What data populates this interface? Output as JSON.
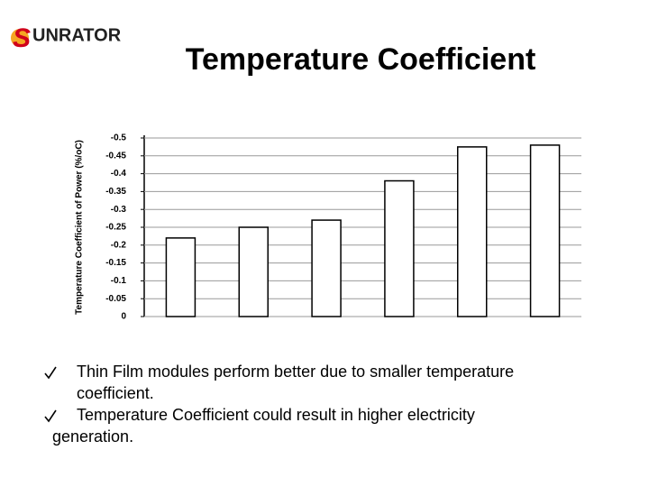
{
  "logo": {
    "initial": "S",
    "name": "UNRATOR"
  },
  "chart_data": {
    "type": "bar",
    "title": "Temperature Coefficient",
    "ylabel": "Temperature Coefficient of Power (%/oC)",
    "categories": [
      null,
      null,
      null,
      null,
      null,
      null
    ],
    "values": [
      -0.22,
      -0.25,
      -0.27,
      -0.38,
      -0.475,
      -0.48
    ],
    "color": "#ffffff",
    "edgecolor": "#000000",
    "ylim": [
      0,
      -0.5
    ],
    "yticks": [
      0,
      -0.05,
      -0.1,
      -0.15,
      -0.2,
      -0.25,
      -0.3,
      -0.35,
      -0.4,
      -0.45,
      -0.5
    ],
    "grid": true
  },
  "bullets": [
    "Thin Film modules perform better due to smaller temperature coefficient.",
    "Temperature Coefficient could result in higher electricity generation."
  ]
}
